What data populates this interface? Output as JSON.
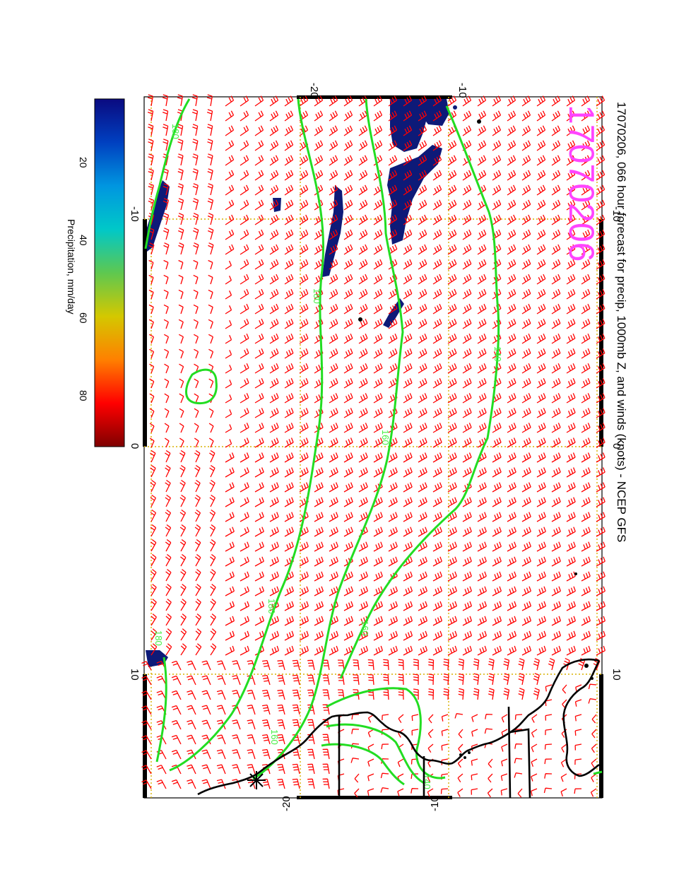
{
  "title": "17070206, 066 hour forecast for precip, 1000mb Z, and winds (knots) - NCEP GFS",
  "date_stamp": "17070206",
  "lon_ticks": [
    "-10",
    "0",
    "10"
  ],
  "lat_ticks": [
    "-20",
    "-10"
  ],
  "contour_labels": [
    "180",
    "180",
    "140",
    "160",
    "180",
    "180",
    "160",
    "160",
    "140"
  ],
  "colorbar": {
    "label": "Precipitation, mm/day",
    "ticks": [
      "20",
      "40",
      "60",
      "80"
    ],
    "colors": [
      "#7f0000",
      "#ff0000",
      "#ff8000",
      "#d4c800",
      "#5ec850",
      "#00c8c8",
      "#0096e0",
      "#0040c0",
      "#0a0a80"
    ]
  },
  "colors": {
    "wind_barbs": "#ff0000",
    "contours": "#22dd22",
    "precip": "#0d1a78",
    "coast": "#000000",
    "grid": "#d8b000",
    "date_stamp": "#ff44ff"
  }
}
